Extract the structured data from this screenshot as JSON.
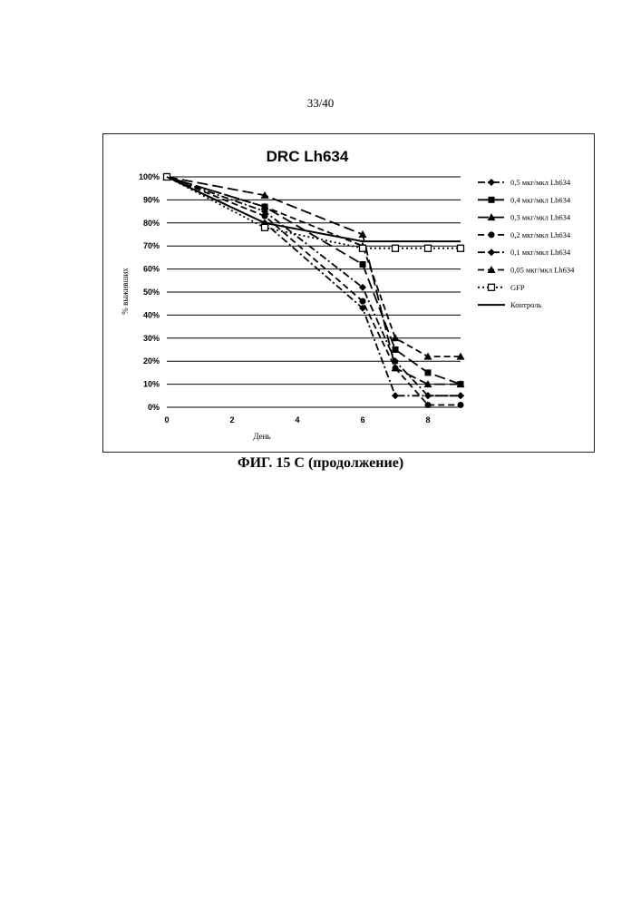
{
  "page_number": "33/40",
  "caption": "ФИГ. 15 С (продолжение)",
  "chart_data": {
    "type": "line",
    "title": "DRC Lh634",
    "xlabel": "День",
    "ylabel": "% выживших",
    "xlim": [
      0,
      9
    ],
    "ylim": [
      0,
      100
    ],
    "x_ticks": [
      0,
      2,
      4,
      6,
      8
    ],
    "x_tick_labels": [
      "0",
      "2",
      "4",
      "6",
      "8"
    ],
    "y_ticks": [
      0,
      10,
      20,
      30,
      40,
      50,
      60,
      70,
      80,
      90,
      100
    ],
    "y_tick_labels": [
      "0%",
      "10%",
      "20%",
      "30%",
      "40%",
      "50%",
      "60%",
      "70%",
      "80%",
      "90%",
      "100%"
    ],
    "grid": "horizontal",
    "legend_position": "right",
    "series": [
      {
        "name": "0,5 мкг/мкл Lh634",
        "marker": "diamond",
        "dash": "dash-dot",
        "x": [
          0,
          3,
          6,
          7,
          8,
          9
        ],
        "y": [
          100,
          85,
          52,
          20,
          5,
          5
        ]
      },
      {
        "name": "0,4 мкг/мкл Lh634",
        "marker": "square",
        "dash": "long-dash",
        "x": [
          0,
          3,
          6,
          7,
          8,
          9
        ],
        "y": [
          100,
          87,
          62,
          25,
          15,
          10
        ]
      },
      {
        "name": "0,3 мкг/мкл Lh634",
        "marker": "triangle",
        "dash": "long-dash",
        "x": [
          0,
          3,
          6,
          7,
          8,
          9
        ],
        "y": [
          100,
          92,
          75,
          17,
          10,
          10
        ]
      },
      {
        "name": "0,2 мкг/мкл Lh634",
        "marker": "circle",
        "dash": "dash",
        "x": [
          0,
          3,
          6,
          7,
          8,
          9
        ],
        "y": [
          100,
          83,
          46,
          17,
          1,
          1
        ]
      },
      {
        "name": "0,1 мкг/мкл Lh634",
        "marker": "diamond",
        "dash": "dash-dot",
        "x": [
          0,
          3,
          6,
          7,
          8,
          9
        ],
        "y": [
          100,
          80,
          43,
          5,
          5,
          5
        ]
      },
      {
        "name": "0,05 мкг/мкл Lh634",
        "marker": "triangle",
        "dash": "dash",
        "x": [
          0,
          3,
          6,
          7,
          8,
          9
        ],
        "y": [
          100,
          87,
          70,
          30,
          22,
          22
        ]
      },
      {
        "name": "GFP",
        "marker": "square-open",
        "dash": "dot",
        "x": [
          0,
          3,
          6,
          7,
          8,
          9
        ],
        "y": [
          100,
          78,
          69,
          69,
          69,
          69
        ]
      },
      {
        "name": "Контроль",
        "marker": "none",
        "dash": "solid",
        "x": [
          0,
          3,
          6,
          7,
          8,
          9
        ],
        "y": [
          100,
          80,
          72,
          72,
          72,
          72
        ]
      }
    ]
  }
}
